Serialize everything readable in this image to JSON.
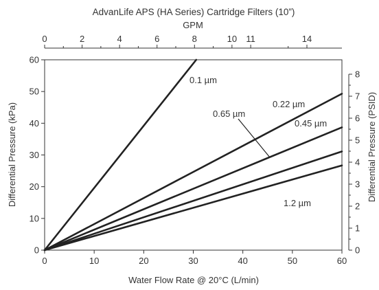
{
  "chart_data": {
    "type": "line",
    "title": "AdvanLife APS (HA Series) Cartridge Filters (10”)",
    "xlabel": "Water Flow Rate @ 20°C (L/min)",
    "ylabel": "Differential Pressure (kPa)",
    "x2label": "GPM",
    "y2label": "Differential Pressure (PSID)",
    "xlim": [
      0,
      60
    ],
    "ylim": [
      0,
      60
    ],
    "x_ticks": [
      0,
      10,
      20,
      30,
      40,
      50,
      60
    ],
    "y_ticks": [
      0,
      10,
      20,
      30,
      40,
      50,
      60
    ],
    "x2_ticks": [
      0,
      2,
      4,
      6,
      8,
      10,
      11,
      14
    ],
    "y2_ticks": [
      0,
      1,
      2,
      3,
      4,
      5,
      6,
      7,
      8
    ],
    "grid": false,
    "legend": "none (series labeled inline)",
    "series": [
      {
        "name": "0.1 µm",
        "x": [
          0,
          30.6
        ],
        "y": [
          0,
          60
        ]
      },
      {
        "name": "0.22 µm",
        "x": [
          0,
          60
        ],
        "y": [
          0,
          49.3
        ]
      },
      {
        "name": "0.45 µm",
        "x": [
          0,
          60
        ],
        "y": [
          0,
          38.7
        ]
      },
      {
        "name": "0.65 µm",
        "x": [
          0,
          60
        ],
        "y": [
          0,
          31.1
        ]
      },
      {
        "name": "1.2 µm",
        "x": [
          0,
          60
        ],
        "y": [
          0,
          26.7
        ]
      }
    ]
  }
}
